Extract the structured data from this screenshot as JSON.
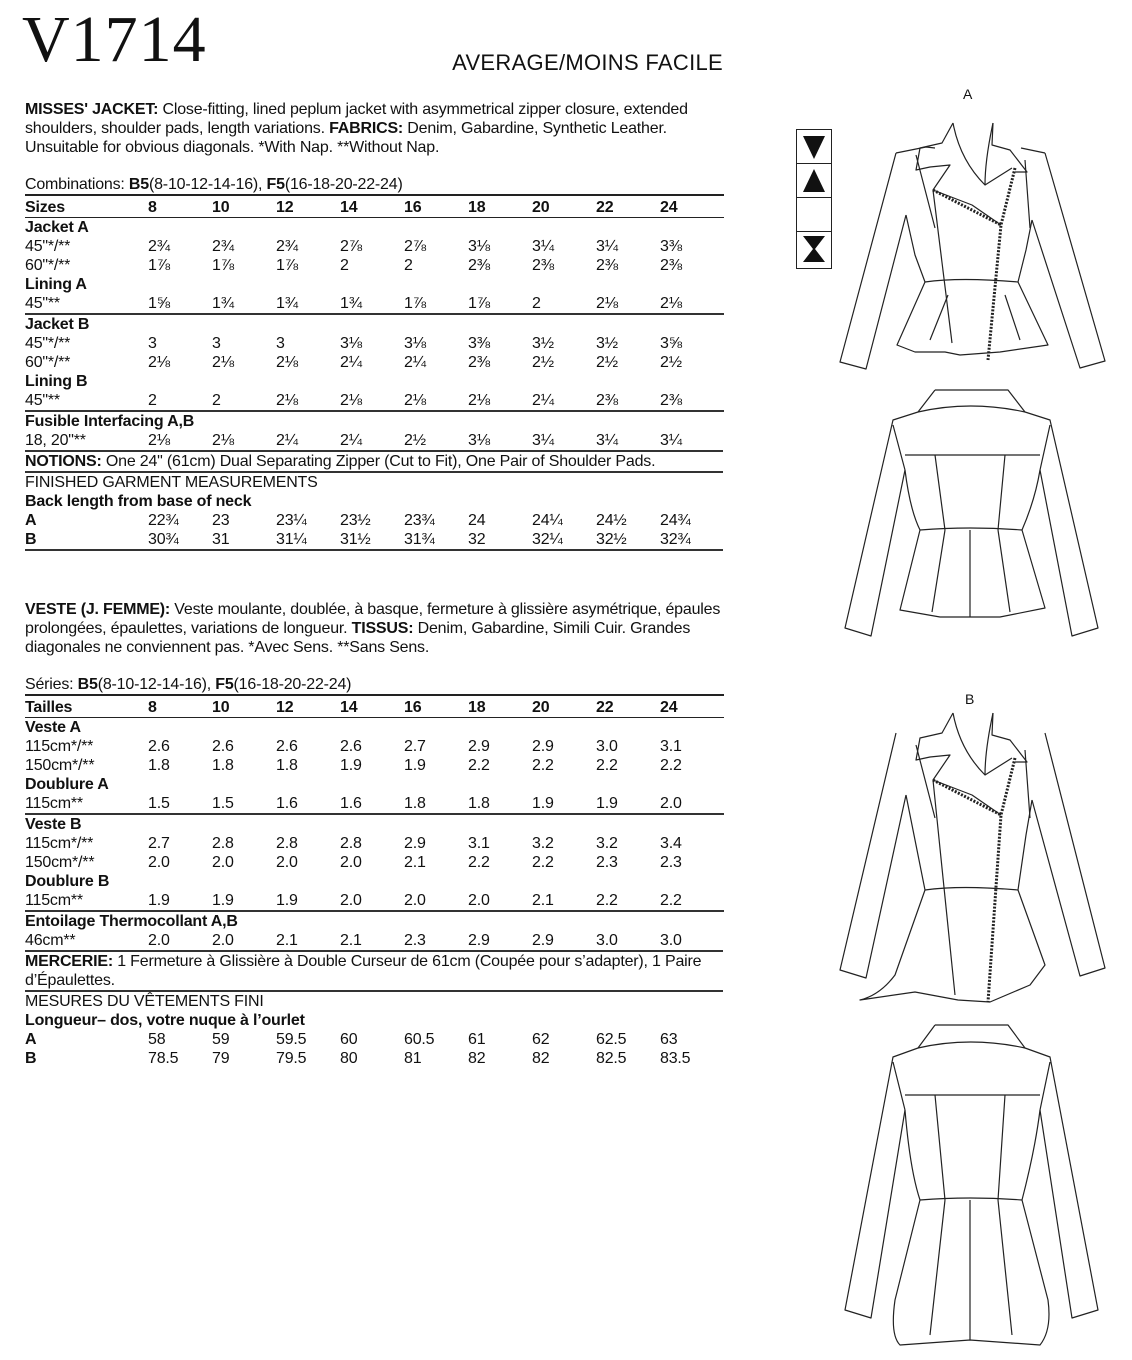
{
  "header": {
    "pattern_number": "V1714",
    "difficulty": "AVERAGE/MOINS FACILE"
  },
  "views": {
    "a": "A",
    "b": "B"
  },
  "symbols": [
    "triangle-down-icon",
    "triangle-up-icon",
    "blank",
    "hourglass-icon"
  ],
  "english": {
    "desc_lead": "MISSES' JACKET:",
    "desc_text1": " Close-fitting, lined peplum jacket with asymmetrical zipper closure, extended shoulders, shoulder pads, length variations. ",
    "desc_fabrics_label": "FABRICS:",
    "desc_text2": " Denim, Gabardine, Synthetic Leather. Unsuitable for obvious diagonals. *With Nap. **Without Nap.",
    "combinations_label": "Combinations: ",
    "combinations": [
      {
        "code": "B5",
        "range": "(8-10-12-14-16), "
      },
      {
        "code": "F5",
        "range": "(16-18-20-22-24)"
      }
    ],
    "table": {
      "header_label": "Sizes",
      "sizes": [
        "8",
        "10",
        "12",
        "14",
        "16",
        "18",
        "20",
        "22",
        "24"
      ],
      "groups": [
        {
          "title": "Jacket A",
          "sep": false,
          "rows": [
            {
              "label": "45\"*/**",
              "values": [
                "2¾",
                "2¾",
                "2¾",
                "2⅞",
                "2⅞",
                "3⅛",
                "3¼",
                "3¼",
                "3⅜"
              ]
            },
            {
              "label": "60\"*/**",
              "values": [
                "1⅞",
                "1⅞",
                "1⅞",
                "2",
                "2",
                "2⅜",
                "2⅜",
                "2⅜",
                "2⅜"
              ]
            }
          ]
        },
        {
          "title": "Lining A",
          "sep": false,
          "rows": [
            {
              "label": "45\"**",
              "values": [
                "1⅝",
                "1¾",
                "1¾",
                "1¾",
                "1⅞",
                "1⅞",
                "2",
                "2⅛",
                "2⅛"
              ]
            }
          ]
        },
        {
          "title": "Jacket B",
          "sep": true,
          "rows": [
            {
              "label": "45\"*/**",
              "values": [
                "3",
                "3",
                "3",
                "3⅛",
                "3⅛",
                "3⅜",
                "3½",
                "3½",
                "3⅝"
              ]
            },
            {
              "label": "60\"*/**",
              "values": [
                "2⅛",
                "2⅛",
                "2⅛",
                "2¼",
                "2¼",
                "2⅜",
                "2½",
                "2½",
                "2½"
              ]
            }
          ]
        },
        {
          "title": "Lining B",
          "sep": false,
          "rows": [
            {
              "label": "45\"**",
              "values": [
                "2",
                "2",
                "2⅛",
                "2⅛",
                "2⅛",
                "2⅛",
                "2¼",
                "2⅜",
                "2⅜"
              ]
            }
          ]
        },
        {
          "title": "Fusible Interfacing A,B",
          "sep": true,
          "rows": [
            {
              "label": "18, 20\"**",
              "values": [
                "2⅛",
                "2⅛",
                "2¼",
                "2¼",
                "2½",
                "3⅛",
                "3¼",
                "3¼",
                "3¼"
              ]
            }
          ]
        }
      ]
    },
    "notions_label": "NOTIONS:",
    "notions_text": " One 24\" (61cm) Dual Separating Zipper (Cut to Fit), One Pair of Shoulder Pads.",
    "finished": {
      "title": "FINISHED GARMENT MEASUREMENTS",
      "subtitle": "Back length from base of neck",
      "rows": [
        {
          "label": "A",
          "values": [
            "22¾",
            "23",
            "23¼",
            "23½",
            "23¾",
            "24",
            "24¼",
            "24½",
            "24¾"
          ]
        },
        {
          "label": "B",
          "values": [
            "30¾",
            "31",
            "31¼",
            "31½",
            "31¾",
            "32",
            "32¼",
            "32½",
            "32¾"
          ]
        }
      ]
    }
  },
  "french": {
    "desc_lead": "VESTE (J. FEMME):",
    "desc_text1": " Veste moulante, doublée, à basque, fermeture à glissière asymétrique, épaules prolongées, épaulettes, variations de longueur. ",
    "desc_fabrics_label": "TISSUS:",
    "desc_text2": " Denim, Gabardine, Simili Cuir. Grandes diagonales ne conviennent pas. *Avec Sens. **Sans Sens.",
    "combinations_label": "Séries: ",
    "combinations": [
      {
        "code": "B5",
        "range": "(8-10-12-14-16), "
      },
      {
        "code": "F5",
        "range": "(16-18-20-22-24)"
      }
    ],
    "table": {
      "header_label": "Tailles",
      "sizes": [
        "8",
        "10",
        "12",
        "14",
        "16",
        "18",
        "20",
        "22",
        "24"
      ],
      "groups": [
        {
          "title": "Veste A",
          "sep": false,
          "rows": [
            {
              "label": "115cm*/**",
              "values": [
                "2.6",
                "2.6",
                "2.6",
                "2.6",
                "2.7",
                "2.9",
                "2.9",
                "3.0",
                "3.1"
              ]
            },
            {
              "label": "150cm*/**",
              "values": [
                "1.8",
                "1.8",
                "1.8",
                "1.9",
                "1.9",
                "2.2",
                "2.2",
                "2.2",
                "2.2"
              ]
            }
          ]
        },
        {
          "title": "Doublure A",
          "sep": false,
          "rows": [
            {
              "label": "115cm**",
              "values": [
                "1.5",
                "1.5",
                "1.6",
                "1.6",
                "1.8",
                "1.8",
                "1.9",
                "1.9",
                "2.0"
              ]
            }
          ]
        },
        {
          "title": "Veste B",
          "sep": true,
          "rows": [
            {
              "label": "115cm*/**",
              "values": [
                "2.7",
                "2.8",
                "2.8",
                "2.8",
                "2.9",
                "3.1",
                "3.2",
                "3.2",
                "3.4"
              ]
            },
            {
              "label": "150cm*/**",
              "values": [
                "2.0",
                "2.0",
                "2.0",
                "2.0",
                "2.1",
                "2.2",
                "2.2",
                "2.3",
                "2.3"
              ]
            }
          ]
        },
        {
          "title": "Doublure B",
          "sep": false,
          "rows": [
            {
              "label": "115cm**",
              "values": [
                "1.9",
                "1.9",
                "1.9",
                "2.0",
                "2.0",
                "2.0",
                "2.1",
                "2.2",
                "2.2"
              ]
            }
          ]
        },
        {
          "title": "Entoilage Thermocollant A,B",
          "sep": true,
          "rows": [
            {
              "label": "46cm**",
              "values": [
                "2.0",
                "2.0",
                "2.1",
                "2.1",
                "2.3",
                "2.9",
                "2.9",
                "3.0",
                "3.0"
              ]
            }
          ]
        }
      ]
    },
    "notions_label": "MERCERIE:",
    "notions_text": " 1 Fermeture à Glissière à Double Curseur de 61cm (Coupée pour s’adapter), 1 Paire d’Épaulettes.",
    "finished": {
      "title": "MESURES DU VÊTEMENTS FINI",
      "subtitle": "Longueur– dos, votre nuque à l’ourlet",
      "rows": [
        {
          "label": "A",
          "values": [
            "58",
            "59",
            "59.5",
            "60",
            "60.5",
            "61",
            "62",
            "62.5",
            "63"
          ]
        },
        {
          "label": "B",
          "values": [
            "78.5",
            "79",
            "79.5",
            "80",
            "81",
            "82",
            "82",
            "82.5",
            "83.5"
          ]
        }
      ]
    }
  }
}
